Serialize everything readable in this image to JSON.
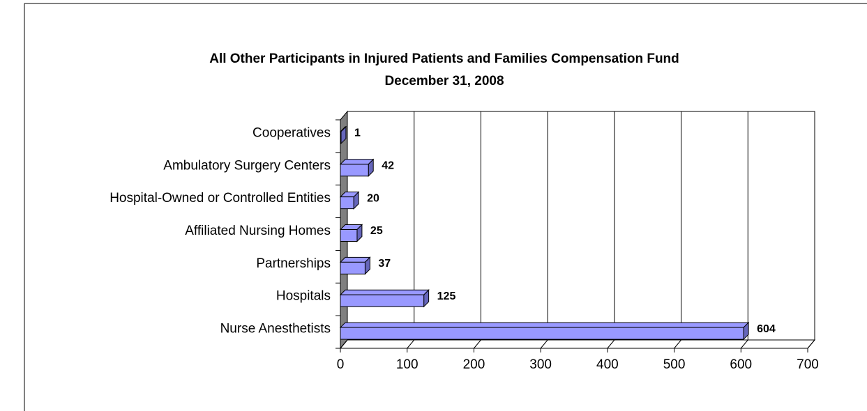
{
  "chart_data": {
    "type": "bar",
    "orientation": "horizontal",
    "title": "All Other Participants in Injured Patients and Families Compensation Fund",
    "subtitle": "December 31, 2008",
    "categories": [
      "Cooperatives",
      "Ambulatory Surgery Centers",
      "Hospital-Owned or Controlled Entities",
      "Affiliated Nursing Homes",
      "Partnerships",
      "Hospitals",
      "Nurse Anesthetists"
    ],
    "values": [
      1,
      42,
      20,
      25,
      37,
      125,
      604
    ],
    "color": "#9999ff",
    "xlim": [
      0,
      700
    ],
    "xticks": [
      0,
      100,
      200,
      300,
      400,
      500,
      600,
      700
    ],
    "grid": true
  }
}
